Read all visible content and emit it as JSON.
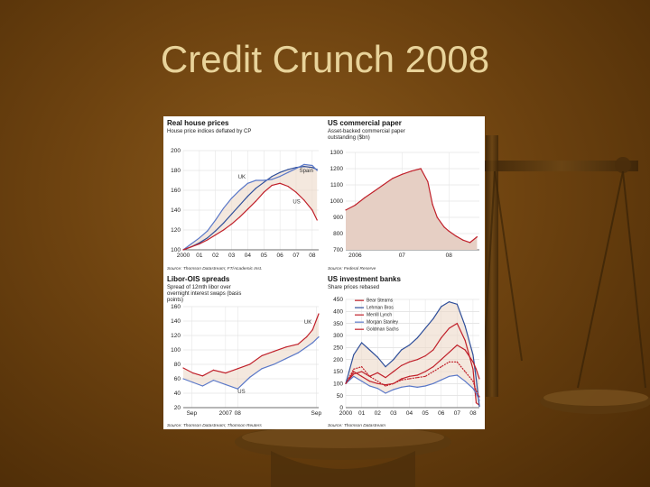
{
  "slide": {
    "title": "Credit Crunch 2008"
  },
  "colors": {
    "background": "#6e4310",
    "title": "#e8d39a",
    "uk": "#5a78c8",
    "us": "#c0202a",
    "spain": "#2f4f9a",
    "shade": "#ecd8c8"
  },
  "chart_data": [
    {
      "id": "house",
      "type": "line",
      "title": "Real house prices",
      "subtitle": "House price indices deflated by CP",
      "source": "Source: Thomson Datastream; FT/Academic Inst.",
      "x_labels": [
        "2000",
        "01",
        "02",
        "03",
        "04",
        "05",
        "06",
        "07",
        "08"
      ],
      "y_ticks": [
        100,
        120,
        140,
        160,
        180,
        200
      ],
      "ylim": [
        100,
        200
      ],
      "xlim": [
        2000,
        2008.4
      ],
      "series": [
        {
          "name": "Spain",
          "color": "#2f4f9a",
          "x": [
            2000,
            2000.5,
            2001,
            2001.5,
            2002,
            2002.5,
            2003,
            2003.5,
            2004,
            2004.5,
            2005,
            2005.5,
            2006,
            2006.5,
            2007,
            2007.5,
            2008,
            2008.3
          ],
          "y": [
            100,
            103,
            107,
            112,
            119,
            127,
            136,
            145,
            154,
            162,
            168,
            174,
            178,
            181,
            183,
            184,
            183,
            181
          ]
        },
        {
          "name": "UK",
          "color": "#5a78c8",
          "x": [
            2000,
            2000.5,
            2001,
            2001.5,
            2002,
            2002.5,
            2003,
            2003.5,
            2004,
            2004.5,
            2005,
            2005.5,
            2006,
            2006.5,
            2007,
            2007.5,
            2008,
            2008.3
          ],
          "y": [
            100,
            106,
            112,
            119,
            130,
            142,
            152,
            160,
            167,
            170,
            170,
            171,
            174,
            178,
            182,
            186,
            185,
            180
          ]
        },
        {
          "name": "US",
          "color": "#c0202a",
          "x": [
            2000,
            2000.5,
            2001,
            2001.5,
            2002,
            2002.5,
            2003,
            2003.5,
            2004,
            2004.5,
            2005,
            2005.5,
            2006,
            2006.5,
            2007,
            2007.5,
            2008,
            2008.3
          ],
          "y": [
            100,
            103,
            106,
            110,
            115,
            120,
            126,
            133,
            141,
            149,
            158,
            165,
            167,
            164,
            158,
            150,
            140,
            130
          ]
        }
      ]
    },
    {
      "id": "paper",
      "type": "area",
      "title": "US commercial paper",
      "subtitle": "Asset-backed commercial paper outstanding ($bn)",
      "source": "Source: Federal Reserve",
      "x_labels": [
        "2006",
        "07",
        "08"
      ],
      "x_label_pos": [
        2006,
        2007,
        2008
      ],
      "xlim": [
        2005.8,
        2008.65
      ],
      "y_ticks": [
        700,
        800,
        900,
        1000,
        1100,
        1200,
        1300
      ],
      "ylim": [
        700,
        1300
      ],
      "series": [
        {
          "name": "",
          "color": "#c0202a",
          "x": [
            2005.8,
            2006,
            2006.2,
            2006.4,
            2006.6,
            2006.8,
            2007,
            2007.2,
            2007.4,
            2007.55,
            2007.65,
            2007.75,
            2007.9,
            2008,
            2008.15,
            2008.3,
            2008.45,
            2008.6
          ],
          "y": [
            945,
            975,
            1020,
            1060,
            1100,
            1140,
            1165,
            1185,
            1200,
            1120,
            980,
            900,
            840,
            815,
            785,
            760,
            745,
            780
          ]
        }
      ]
    },
    {
      "id": "libor",
      "type": "line",
      "title": "Libor-OIS spreads",
      "subtitle": "Spread of 12mth libor over overnight interest swaps (basis points)",
      "source": "Source: Thomson Datastream; Thomson Reuters",
      "x_labels": [
        "Sep",
        "2007",
        "08",
        "Sep"
      ],
      "x_label_pos": [
        2007.67,
        2007.95,
        2008.05,
        2008.7
      ],
      "xlim": [
        2007.6,
        2008.72
      ],
      "y_ticks": [
        20,
        40,
        60,
        80,
        100,
        120,
        140,
        160
      ],
      "ylim": [
        20,
        160
      ],
      "series": [
        {
          "name": "UK",
          "color": "#c0202a",
          "x": [
            2007.6,
            2007.68,
            2007.76,
            2007.85,
            2007.95,
            2008.05,
            2008.15,
            2008.25,
            2008.35,
            2008.45,
            2008.55,
            2008.62,
            2008.67,
            2008.72
          ],
          "y": [
            75,
            68,
            64,
            72,
            68,
            74,
            80,
            92,
            98,
            104,
            108,
            118,
            128,
            150
          ]
        },
        {
          "name": "US",
          "color": "#5a78c8",
          "x": [
            2007.6,
            2007.68,
            2007.76,
            2007.85,
            2007.95,
            2008.05,
            2008.15,
            2008.25,
            2008.35,
            2008.45,
            2008.55,
            2008.62,
            2008.67,
            2008.72
          ],
          "y": [
            60,
            55,
            50,
            58,
            52,
            46,
            62,
            74,
            80,
            88,
            96,
            104,
            110,
            118
          ]
        }
      ]
    },
    {
      "id": "banks",
      "type": "line",
      "title": "US investment banks",
      "subtitle": "Share prices rebased",
      "source": "Source: Thomson Datastream",
      "x_labels": [
        "2000",
        "01",
        "02",
        "03",
        "04",
        "05",
        "06",
        "07",
        "08"
      ],
      "xlim": [
        2000,
        2008.4
      ],
      "y_ticks": [
        0,
        50,
        100,
        150,
        200,
        250,
        300,
        350,
        400,
        450
      ],
      "ylim": [
        0,
        450
      ],
      "series": [
        {
          "name": "Bear Stearns",
          "color": "#c0202a",
          "x": [
            2000,
            2000.5,
            2001,
            2001.5,
            2002,
            2002.5,
            2003,
            2003.5,
            2004,
            2004.5,
            2005,
            2005.5,
            2006,
            2006.5,
            2007,
            2007.5,
            2008,
            2008.2,
            2008.4
          ],
          "y": [
            100,
            140,
            150,
            130,
            145,
            125,
            150,
            175,
            190,
            200,
            215,
            240,
            290,
            330,
            350,
            280,
            160,
            20,
            10
          ]
        },
        {
          "name": "Lehman Bros",
          "color": "#2f4f9a",
          "x": [
            2000,
            2000.5,
            2001,
            2001.5,
            2002,
            2002.5,
            2003,
            2003.5,
            2004,
            2004.5,
            2005,
            2005.5,
            2006,
            2006.5,
            2007,
            2007.5,
            2008,
            2008.2,
            2008.4
          ],
          "y": [
            100,
            220,
            270,
            240,
            210,
            170,
            200,
            240,
            260,
            290,
            330,
            370,
            420,
            440,
            430,
            340,
            220,
            120,
            5
          ]
        },
        {
          "name": "Merrill Lynch",
          "color": "#c0202a",
          "x": [
            2000,
            2000.5,
            2001,
            2001.5,
            2002,
            2002.5,
            2003,
            2003.5,
            2004,
            2004.5,
            2005,
            2005.5,
            2006,
            2006.5,
            2007,
            2007.5,
            2008,
            2008.2,
            2008.4
          ],
          "y": [
            100,
            160,
            170,
            130,
            110,
            90,
            100,
            115,
            120,
            125,
            130,
            150,
            170,
            190,
            190,
            150,
            110,
            70,
            45
          ]
        },
        {
          "name": "Morgan Stanley",
          "color": "#5a78c8",
          "x": [
            2000,
            2000.5,
            2001,
            2001.5,
            2002,
            2002.5,
            2003,
            2003.5,
            2004,
            2004.5,
            2005,
            2005.5,
            2006,
            2006.5,
            2007,
            2007.5,
            2008,
            2008.2,
            2008.4
          ],
          "y": [
            100,
            130,
            110,
            90,
            80,
            60,
            75,
            85,
            90,
            85,
            90,
            100,
            115,
            130,
            135,
            110,
            80,
            60,
            30
          ]
        },
        {
          "name": "Goldman Sachs",
          "color": "#c0202a",
          "x": [
            2000,
            2000.5,
            2001,
            2001.5,
            2002,
            2002.5,
            2003,
            2003.5,
            2004,
            2004.5,
            2005,
            2005.5,
            2006,
            2006.5,
            2007,
            2007.5,
            2008,
            2008.2,
            2008.4
          ],
          "y": [
            100,
            150,
            130,
            110,
            100,
            95,
            100,
            120,
            130,
            135,
            150,
            170,
            200,
            230,
            260,
            240,
            190,
            160,
            120
          ]
        }
      ]
    }
  ]
}
